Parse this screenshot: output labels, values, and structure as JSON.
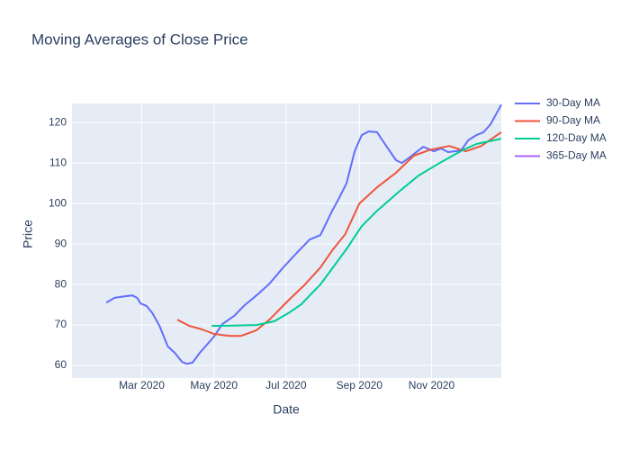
{
  "chart_data": {
    "type": "line",
    "title": "Moving Averages of Close Price",
    "x_label": "Date",
    "y_label": "Price",
    "xlim": [
      1,
      364
    ],
    "ylim": [
      56.9,
      124.7
    ],
    "xticks": [
      {
        "value": 60,
        "label": "Mar 2020"
      },
      {
        "value": 121,
        "label": "May 2020"
      },
      {
        "value": 182,
        "label": "Jul 2020"
      },
      {
        "value": 244,
        "label": "Sep 2020"
      },
      {
        "value": 305,
        "label": "Nov 2020"
      }
    ],
    "yticks": [
      60,
      70,
      80,
      90,
      100,
      110,
      120
    ],
    "grid": true,
    "legend": "right",
    "series": [
      {
        "name": "30-Day MA",
        "color": "#636efa",
        "x": [
          30,
          37,
          46,
          52,
          56,
          59,
          64,
          69,
          75,
          82,
          88,
          94,
          98,
          103,
          109,
          115,
          121,
          128,
          138,
          147,
          157,
          168,
          179,
          191,
          202,
          211,
          221,
          226,
          233,
          240,
          246,
          252,
          259,
          263,
          275,
          280,
          286,
          298,
          307,
          313,
          319,
          330,
          336,
          343,
          349,
          355,
          364
        ],
        "values": [
          75.5,
          76.7,
          77.1,
          77.3,
          76.7,
          75.3,
          74.7,
          72.9,
          69.8,
          64.7,
          63.1,
          60.9,
          60.4,
          60.7,
          63.1,
          65.1,
          67.1,
          70.2,
          72.2,
          74.9,
          77.3,
          80.2,
          84,
          87.8,
          91.1,
          92.2,
          98.2,
          100.9,
          104.9,
          112.9,
          116.9,
          117.8,
          117.6,
          115.8,
          110.7,
          110,
          111.3,
          114,
          112.9,
          113.6,
          112.7,
          113.1,
          115.6,
          116.9,
          117.6,
          119.6,
          124.4
        ]
      },
      {
        "name": "90-Day MA",
        "color": "#EF553B",
        "x": [
          90,
          100,
          111,
          121,
          134,
          144,
          157,
          168,
          183,
          198,
          211,
          221,
          232,
          244,
          259,
          275,
          290,
          304,
          320,
          334,
          347,
          364
        ],
        "values": [
          71.3,
          69.8,
          68.9,
          67.8,
          67.3,
          67.3,
          68.7,
          71.3,
          75.8,
          80,
          84.2,
          88.4,
          92.4,
          100,
          104,
          107.6,
          111.8,
          113.3,
          114.2,
          112.9,
          114.2,
          117.6
        ]
      },
      {
        "name": "120-Day MA",
        "color": "#00cc96",
        "x": [
          119,
          130,
          157,
          172,
          185,
          195,
          203,
          211,
          233,
          246,
          259,
          279,
          294,
          313,
          332,
          343,
          364
        ],
        "values": [
          69.8,
          69.8,
          70,
          70.9,
          73.1,
          75.1,
          77.6,
          80,
          88.7,
          94.4,
          98.2,
          103.3,
          106.9,
          110.2,
          113.3,
          114.7,
          116
        ]
      },
      {
        "name": "365-Day MA",
        "color": "#ab63fa",
        "x": [],
        "values": []
      }
    ]
  }
}
